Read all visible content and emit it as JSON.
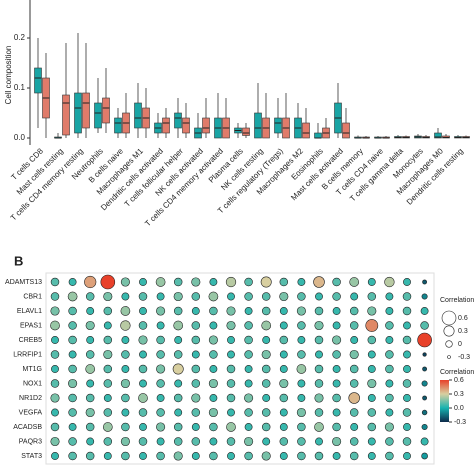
{
  "chart_data": [
    {
      "type": "box",
      "ylabel": "Cell composition",
      "ylim": [
        -0.014,
        0.276
      ],
      "yticks": [
        {
          "value": 0,
          "label": "0.0"
        },
        0.1,
        0.2
      ],
      "categories": [
        "T cells CD8",
        "Mast cells resting",
        "T cells CD4 memory resting",
        "Neutrophils",
        "B cells naive",
        "Macrophages M1",
        "Dendritic cells activated",
        "T cells follicular helper",
        "NK cells activated",
        "T cells CD4 memory activated",
        "Plasma cells",
        "NK cells resting",
        "T cells regulatory (Tregs)",
        "Macrophages M2",
        "Eosinophils",
        "Mast cells activated",
        "B cells memory",
        "T cells CD4 naive",
        "T cells gamma delta",
        "Monocytes",
        "Macrophages M0",
        "Dendritic cells resting"
      ],
      "series": [
        {
          "color": "#1aa5a5",
          "values": [
            [
              0.02,
              0.09,
              0.12,
              0.14,
              0.2
            ],
            [
              0,
              0,
              0,
              0.002,
              0.01
            ],
            [
              0,
              0.01,
              0.06,
              0.09,
              0.21
            ],
            [
              0.01,
              0.02,
              0.05,
              0.07,
              0.12
            ],
            [
              0,
              0.01,
              0.03,
              0.04,
              0.06
            ],
            [
              0,
              0.02,
              0.04,
              0.07,
              0.11
            ],
            [
              0,
              0.01,
              0.02,
              0.03,
              0.05
            ],
            [
              0,
              0.02,
              0.04,
              0.05,
              0.08
            ],
            [
              0,
              0,
              0.01,
              0.02,
              0.05
            ],
            [
              0,
              0,
              0.02,
              0.04,
              0.09
            ],
            [
              0,
              0.01,
              0.015,
              0.02,
              0.03
            ],
            [
              0,
              0,
              0.02,
              0.05,
              0.11
            ],
            [
              0,
              0.01,
              0.03,
              0.04,
              0.08
            ],
            [
              0,
              0,
              0.02,
              0.04,
              0.07
            ],
            [
              0,
              0,
              0,
              0.01,
              0.03
            ],
            [
              0,
              0.01,
              0.04,
              0.07,
              0.11
            ],
            [
              0,
              0,
              0,
              0.002,
              0.005
            ],
            [
              0,
              0,
              0,
              0.002,
              0.004
            ],
            [
              0,
              0,
              0.001,
              0.003,
              0.006
            ],
            [
              0,
              0,
              0.002,
              0.004,
              0.008
            ],
            [
              0,
              0,
              0.002,
              0.01,
              0.02
            ],
            [
              0,
              0,
              0.001,
              0.003,
              0.006
            ]
          ]
        },
        {
          "color": "#e07b6a",
          "values": [
            [
              0,
              0.04,
              0.08,
              0.12,
              0.17
            ],
            [
              0,
              0.006,
              0.07,
              0.086,
              0.19
            ],
            [
              0,
              0.02,
              0.07,
              0.09,
              0.19
            ],
            [
              0.01,
              0.03,
              0.06,
              0.08,
              0.14
            ],
            [
              0,
              0.01,
              0.03,
              0.05,
              0.09
            ],
            [
              0,
              0.02,
              0.04,
              0.06,
              0.1
            ],
            [
              0,
              0.01,
              0.03,
              0.04,
              0.06
            ],
            [
              0,
              0.01,
              0.03,
              0.04,
              0.07
            ],
            [
              0,
              0.01,
              0.02,
              0.04,
              0.08
            ],
            [
              0,
              0,
              0.02,
              0.04,
              0.08
            ],
            [
              0,
              0.005,
              0.01,
              0.02,
              0.03
            ],
            [
              0,
              0,
              0.02,
              0.04,
              0.09
            ],
            [
              0,
              0,
              0.02,
              0.04,
              0.09
            ],
            [
              0,
              0,
              0.01,
              0.03,
              0.06
            ],
            [
              0,
              0,
              0.01,
              0.02,
              0.04
            ],
            [
              0,
              0,
              0.01,
              0.03,
              0.06
            ],
            [
              0,
              0,
              0,
              0.002,
              0.004
            ],
            [
              0,
              0,
              0,
              0.002,
              0.004
            ],
            [
              0,
              0,
              0.001,
              0.003,
              0.005
            ],
            [
              0,
              0,
              0.001,
              0.003,
              0.006
            ],
            [
              0,
              0,
              0.001,
              0.004,
              0.008
            ],
            [
              0,
              0,
              0.001,
              0.003,
              0.005
            ]
          ]
        }
      ]
    },
    {
      "type": "bubble",
      "panel_label": "B",
      "rows": [
        "ADAMTS13",
        "CBR1",
        "ELAVL1",
        "EPAS1",
        "CREB5",
        "LRRFIP1",
        "MT1G",
        "NOX1",
        "NR1D2",
        "VEGFA",
        "ACADSB",
        "PAQR3",
        "STAT3"
      ],
      "matrix": [
        [
          0.1,
          0.05,
          0.4,
          0.6,
          0.15,
          0.05,
          0.2,
          0.1,
          0.15,
          0.05,
          0.25,
          0.1,
          0.3,
          0.1,
          0.05,
          0.35,
          0.1,
          0.2,
          0.05,
          0.25,
          0.05,
          -0.2
        ],
        [
          0.1,
          0.2,
          0.1,
          0.15,
          0.05,
          0.1,
          0.05,
          0.15,
          0.1,
          0.2,
          0.05,
          0.1,
          0.1,
          0.15,
          0.1,
          0.05,
          0.1,
          0.05,
          0.1,
          0.05,
          0.1,
          -0.1
        ],
        [
          0.15,
          0.1,
          0.05,
          0.1,
          0.2,
          0.05,
          0.15,
          0.1,
          0.05,
          0.1,
          0.15,
          0.05,
          0.1,
          0.05,
          0.15,
          0.1,
          0.05,
          0.1,
          0.15,
          0.05,
          0.1,
          0.05
        ],
        [
          0.2,
          0.1,
          0.15,
          0.05,
          0.25,
          0.1,
          0.05,
          0.2,
          0.1,
          0.05,
          0.15,
          0.1,
          0.2,
          0.05,
          0.1,
          0.15,
          0.05,
          0.1,
          0.45,
          0.1,
          0.05,
          0.1
        ],
        [
          0.05,
          0.1,
          0.05,
          0.1,
          0.05,
          0.15,
          0.1,
          0.05,
          0.1,
          0.15,
          0.05,
          0.1,
          0.05,
          0.1,
          0.05,
          0.1,
          0.15,
          0.05,
          0.1,
          0.05,
          0.1,
          0.6
        ],
        [
          0.1,
          0.05,
          0.1,
          0.15,
          0.1,
          0.05,
          0.1,
          0.1,
          0.05,
          0.1,
          0.05,
          0.1,
          0.15,
          0.05,
          0.1,
          0.05,
          0.1,
          0.15,
          0.05,
          0.1,
          0.05,
          -0.25
        ],
        [
          0.05,
          0.1,
          0.2,
          0.1,
          0.05,
          0.1,
          0.15,
          0.3,
          0.1,
          0.05,
          0.1,
          0.05,
          0.1,
          0.05,
          0.2,
          0.1,
          0.05,
          0.1,
          0.05,
          0.1,
          0.05,
          -0.2
        ],
        [
          0.1,
          0.15,
          0.05,
          0.1,
          0.15,
          0.05,
          0.1,
          0.05,
          0.1,
          0.15,
          0.1,
          0.05,
          0.1,
          0.15,
          0.05,
          0.1,
          0.05,
          0.1,
          0.15,
          0.05,
          0.1,
          -0.1
        ],
        [
          0.15,
          0.1,
          0.1,
          0.05,
          0.1,
          0.2,
          0.05,
          0.1,
          0.15,
          0.05,
          0.1,
          0.15,
          0.05,
          0.1,
          0.05,
          0.15,
          0.1,
          0.35,
          0.05,
          0.1,
          0.05,
          -0.2
        ],
        [
          0.05,
          0.1,
          0.15,
          0.1,
          0.05,
          0.1,
          0.1,
          0.05,
          0.1,
          0.15,
          0.05,
          0.1,
          0.1,
          0.05,
          0.15,
          0.1,
          0.05,
          0.1,
          0.1,
          0.05,
          0.1,
          -0.15
        ],
        [
          0.1,
          0.05,
          0.1,
          0.2,
          0.1,
          0.05,
          0.15,
          0.1,
          0.05,
          0.1,
          0.2,
          0.05,
          0.1,
          0.05,
          0.1,
          0.2,
          0.1,
          0.05,
          0.1,
          0.15,
          0.05,
          -0.1
        ],
        [
          0.15,
          0.1,
          0.05,
          0.1,
          0.15,
          0.1,
          0.05,
          0.1,
          0.1,
          0.05,
          0.1,
          0.15,
          0.05,
          0.1,
          0.1,
          0.05,
          0.15,
          0.1,
          0.05,
          0.1,
          0.1,
          0.05
        ],
        [
          0.05,
          0.1,
          0.1,
          0.05,
          0.1,
          0.05,
          0.1,
          0.15,
          0.05,
          0.1,
          0.05,
          0.1,
          0.15,
          0.05,
          0.1,
          0.1,
          0.05,
          0.1,
          0.05,
          0.1,
          0.05,
          -0.05
        ]
      ],
      "size_legend": {
        "title": "Correlation",
        "ticks": [
          0.6,
          0.3,
          0,
          -0.3
        ]
      },
      "color_legend": {
        "title": "Correlation",
        "ticks": [
          0.6,
          0.3,
          {
            "value": 0,
            "label": "0.0"
          },
          -0.3
        ]
      },
      "colorscale": [
        {
          "value": -0.3,
          "color": "#0d2a4a"
        },
        {
          "value": 0,
          "color": "#17b3b0"
        },
        {
          "value": 0.3,
          "color": "#d8cfa0"
        },
        {
          "value": 0.6,
          "color": "#e8412a"
        }
      ]
    }
  ]
}
